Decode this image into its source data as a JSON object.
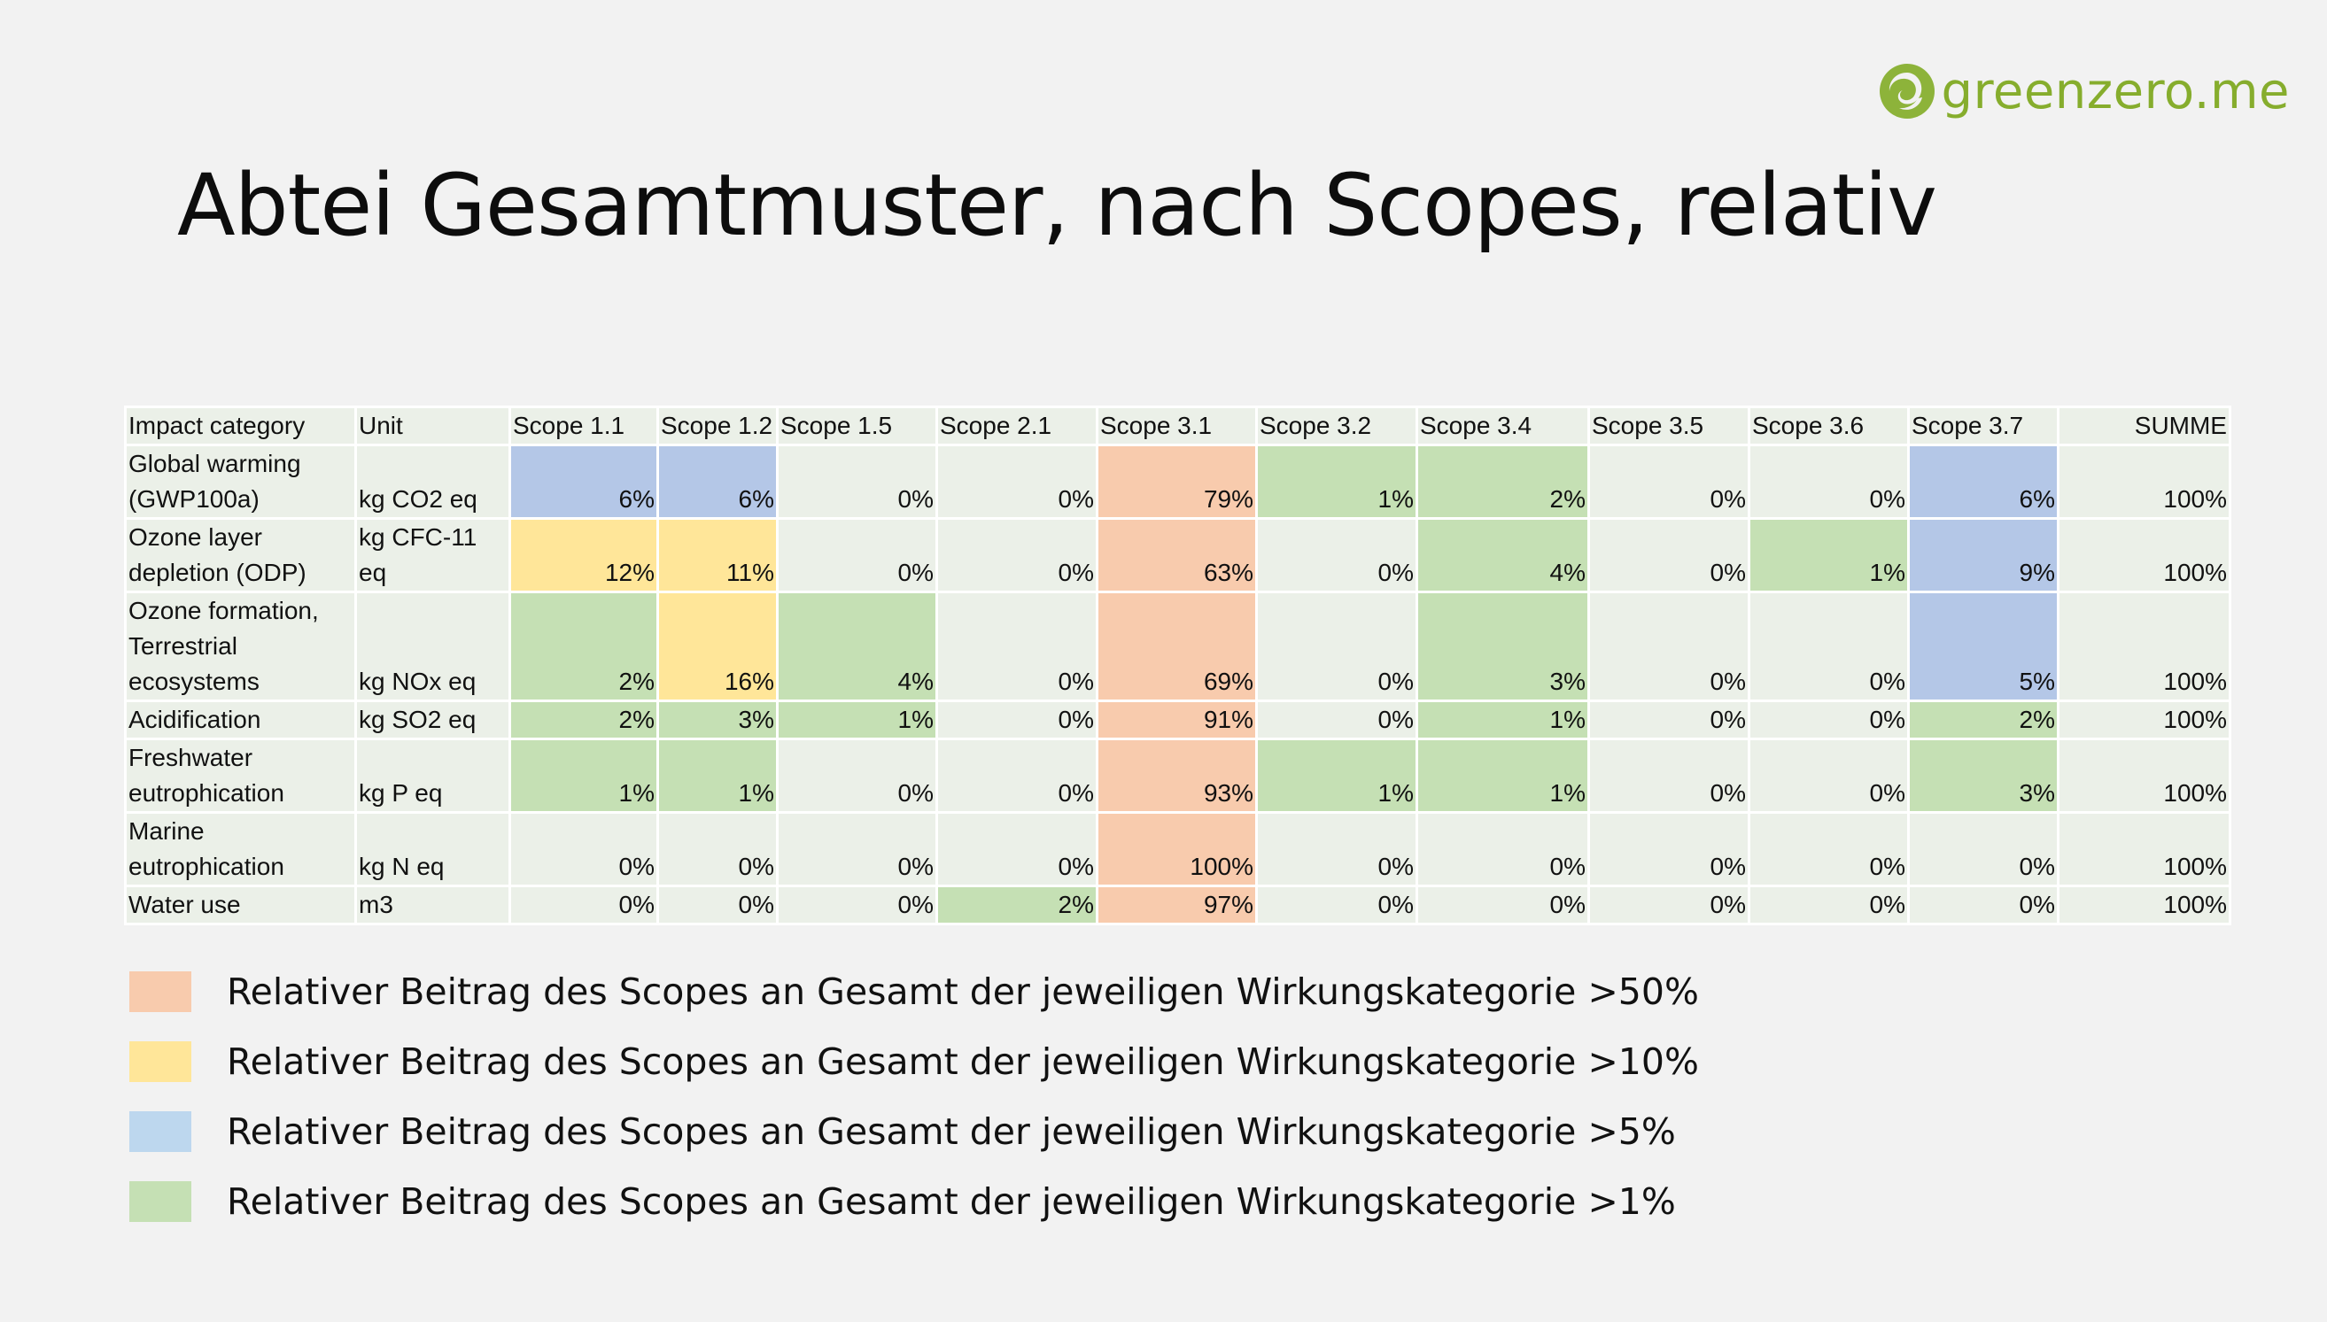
{
  "logo": {
    "text": "greenzero.me",
    "icon": "swirl-logo-icon",
    "color": "#86ad2d"
  },
  "title": "Abtei Gesamtmuster, nach Scopes, relativ",
  "table": {
    "headers": [
      "Impact category",
      "Unit",
      "Scope 1.1",
      "Scope 1.2",
      "Scope 1.5",
      "Scope 2.1",
      "Scope 3.1",
      "Scope 3.2",
      "Scope 3.4",
      "Scope 3.5",
      "Scope 3.6",
      "Scope 3.7",
      "SUMME"
    ],
    "rows": [
      {
        "category": "Global warming (GWP100a)",
        "unit": "kg CO2 eq",
        "values": [
          "6%",
          "6%",
          "0%",
          "0%",
          "79%",
          "1%",
          "2%",
          "0%",
          "0%",
          "6%",
          "100%"
        ],
        "highlights": [
          "blue",
          "blue",
          "",
          "",
          "orange",
          "green",
          "green",
          "",
          "",
          "blue",
          ""
        ]
      },
      {
        "category": "Ozone layer depletion (ODP)",
        "unit": "kg CFC-11 eq",
        "values": [
          "12%",
          "11%",
          "0%",
          "0%",
          "63%",
          "0%",
          "4%",
          "0%",
          "1%",
          "9%",
          "100%"
        ],
        "highlights": [
          "yellow",
          "yellow",
          "",
          "",
          "orange",
          "",
          "green",
          "",
          "green",
          "blue",
          ""
        ]
      },
      {
        "category": "Ozone formation, Terrestrial ecosystems",
        "unit": "kg NOx eq",
        "values": [
          "2%",
          "16%",
          "4%",
          "0%",
          "69%",
          "0%",
          "3%",
          "0%",
          "0%",
          "5%",
          "100%"
        ],
        "highlights": [
          "green",
          "yellow",
          "green",
          "",
          "orange",
          "",
          "green",
          "",
          "",
          "blue",
          ""
        ]
      },
      {
        "category": "Acidification",
        "unit": "kg SO2 eq",
        "values": [
          "2%",
          "3%",
          "1%",
          "0%",
          "91%",
          "0%",
          "1%",
          "0%",
          "0%",
          "2%",
          "100%"
        ],
        "highlights": [
          "green",
          "green",
          "green",
          "",
          "orange",
          "",
          "green",
          "",
          "",
          "green",
          ""
        ]
      },
      {
        "category": "Freshwater eutrophication",
        "unit": "kg P eq",
        "values": [
          "1%",
          "1%",
          "0%",
          "0%",
          "93%",
          "1%",
          "1%",
          "0%",
          "0%",
          "3%",
          "100%"
        ],
        "highlights": [
          "green",
          "green",
          "",
          "",
          "orange",
          "green",
          "green",
          "",
          "",
          "green",
          ""
        ]
      },
      {
        "category": "Marine eutrophication",
        "unit": "kg N eq",
        "values": [
          "0%",
          "0%",
          "0%",
          "0%",
          "100%",
          "0%",
          "0%",
          "0%",
          "0%",
          "0%",
          "100%"
        ],
        "highlights": [
          "",
          "",
          "",
          "",
          "orange",
          "",
          "",
          "",
          "",
          "",
          ""
        ]
      },
      {
        "category": "Water use",
        "unit": "m3",
        "values": [
          "0%",
          "0%",
          "0%",
          "2%",
          "97%",
          "0%",
          "0%",
          "0%",
          "0%",
          "0%",
          "100%"
        ],
        "highlights": [
          "",
          "",
          "",
          "green",
          "orange",
          "",
          "",
          "",
          "",
          "",
          ""
        ]
      }
    ]
  },
  "legend": [
    {
      "color": "#f8cbad",
      "text": "Relativer Beitrag des Scopes an Gesamt der jeweiligen Wirkungskategorie >50%"
    },
    {
      "color": "#ffe699",
      "text": "Relativer Beitrag des Scopes an Gesamt der jeweiligen Wirkungskategorie >10%"
    },
    {
      "color": "#bdd7ee",
      "text": "Relativer Beitrag des Scopes an Gesamt der jeweiligen Wirkungskategorie >5%"
    },
    {
      "color": "#c5e0b4",
      "text": "Relativer Beitrag des Scopes an Gesamt der jeweiligen Wirkungskategorie >1%"
    }
  ]
}
